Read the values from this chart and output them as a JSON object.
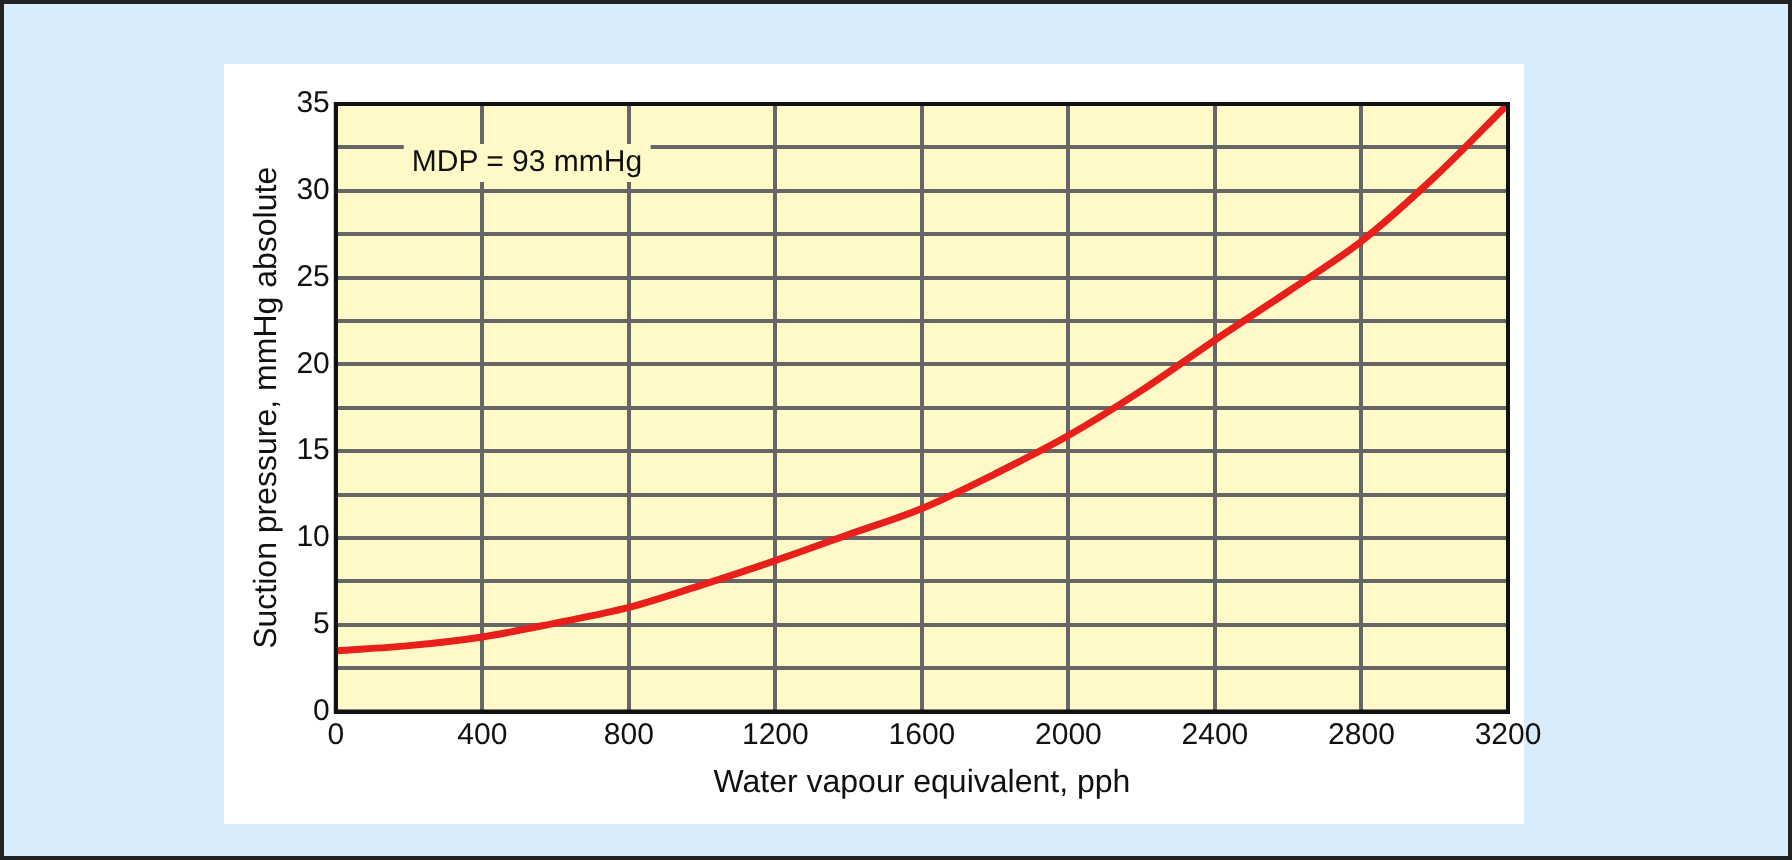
{
  "chart_data": {
    "type": "line",
    "xlabel": "Water vapour equivalent, pph",
    "ylabel": "Suction pressure, mmHg absolute",
    "annotations": [
      "MDP = 93 mmHg"
    ],
    "x": [
      0,
      200,
      400,
      600,
      800,
      1000,
      1200,
      1400,
      1600,
      1800,
      2000,
      2200,
      2400,
      2600,
      2800,
      3000,
      3200
    ],
    "series": [
      {
        "color": "#e8201c",
        "values": [
          3.5,
          3.8,
          4.3,
          5.1,
          6.0,
          7.3,
          8.7,
          10.2,
          11.7,
          13.7,
          15.9,
          18.5,
          21.4,
          24.2,
          27.1,
          30.8,
          35
        ]
      }
    ],
    "xlim": [
      0,
      3200
    ],
    "xticks": [
      0,
      400,
      800,
      1200,
      1600,
      2000,
      2400,
      2800,
      3200
    ],
    "ylim": [
      0,
      35
    ],
    "yticks": [
      0,
      {
        "value": 2.5,
        "label": null
      },
      5,
      {
        "value": 7.5,
        "label": null
      },
      10,
      {
        "value": 12.5,
        "label": null
      },
      15,
      {
        "value": 17.5,
        "label": null
      },
      20,
      {
        "value": 22.5,
        "label": null
      },
      25,
      {
        "value": 27.5,
        "label": null
      },
      30,
      {
        "value": 32.5,
        "label": null
      },
      35
    ],
    "grid": true,
    "marker": "none",
    "line_style": "solid",
    "legend": false
  }
}
